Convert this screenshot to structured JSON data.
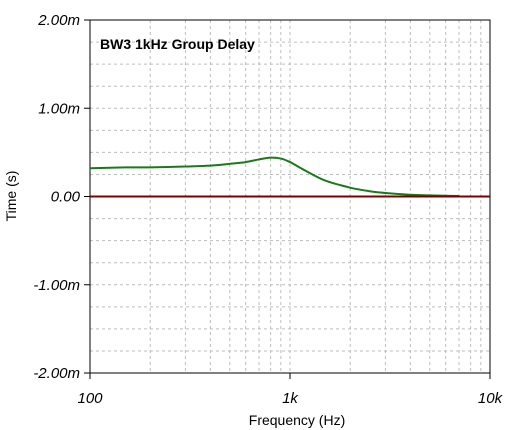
{
  "chart_data": {
    "type": "line",
    "title": "BW3 1kHz Group Delay",
    "xlabel": "Frequency (Hz)",
    "ylabel": "Time (s)",
    "x_scale": "log",
    "xlim": [
      100,
      10000
    ],
    "ylim": [
      -0.002,
      0.002
    ],
    "x_ticks": [
      100,
      1000,
      10000
    ],
    "x_tick_labels": [
      "100",
      "1k",
      "10k"
    ],
    "y_ticks": [
      0.002,
      0.001,
      0,
      -0.001,
      -0.002
    ],
    "y_tick_labels": [
      "2.00m",
      "1.00m",
      "0.00",
      "-1.00m",
      "-2.00m"
    ],
    "grid": true,
    "series": [
      {
        "color": "#1a7a1a",
        "x": [
          100,
          150,
          200,
          300,
          400,
          500,
          600,
          700,
          800,
          900,
          1000,
          1200,
          1500,
          2000,
          2500,
          3000,
          4000,
          5000,
          6000,
          7000
        ],
        "y": [
          0.00032,
          0.00033,
          0.00033,
          0.00034,
          0.00035,
          0.00037,
          0.00039,
          0.00042,
          0.00044,
          0.00043,
          0.00039,
          0.00029,
          0.00018,
          0.0001,
          6e-05,
          4e-05,
          2e-05,
          1.3e-05,
          8e-06,
          5e-06
        ]
      },
      {
        "color": "#7a0000",
        "x": [
          100,
          10000
        ],
        "y": [
          0,
          0
        ]
      }
    ]
  }
}
